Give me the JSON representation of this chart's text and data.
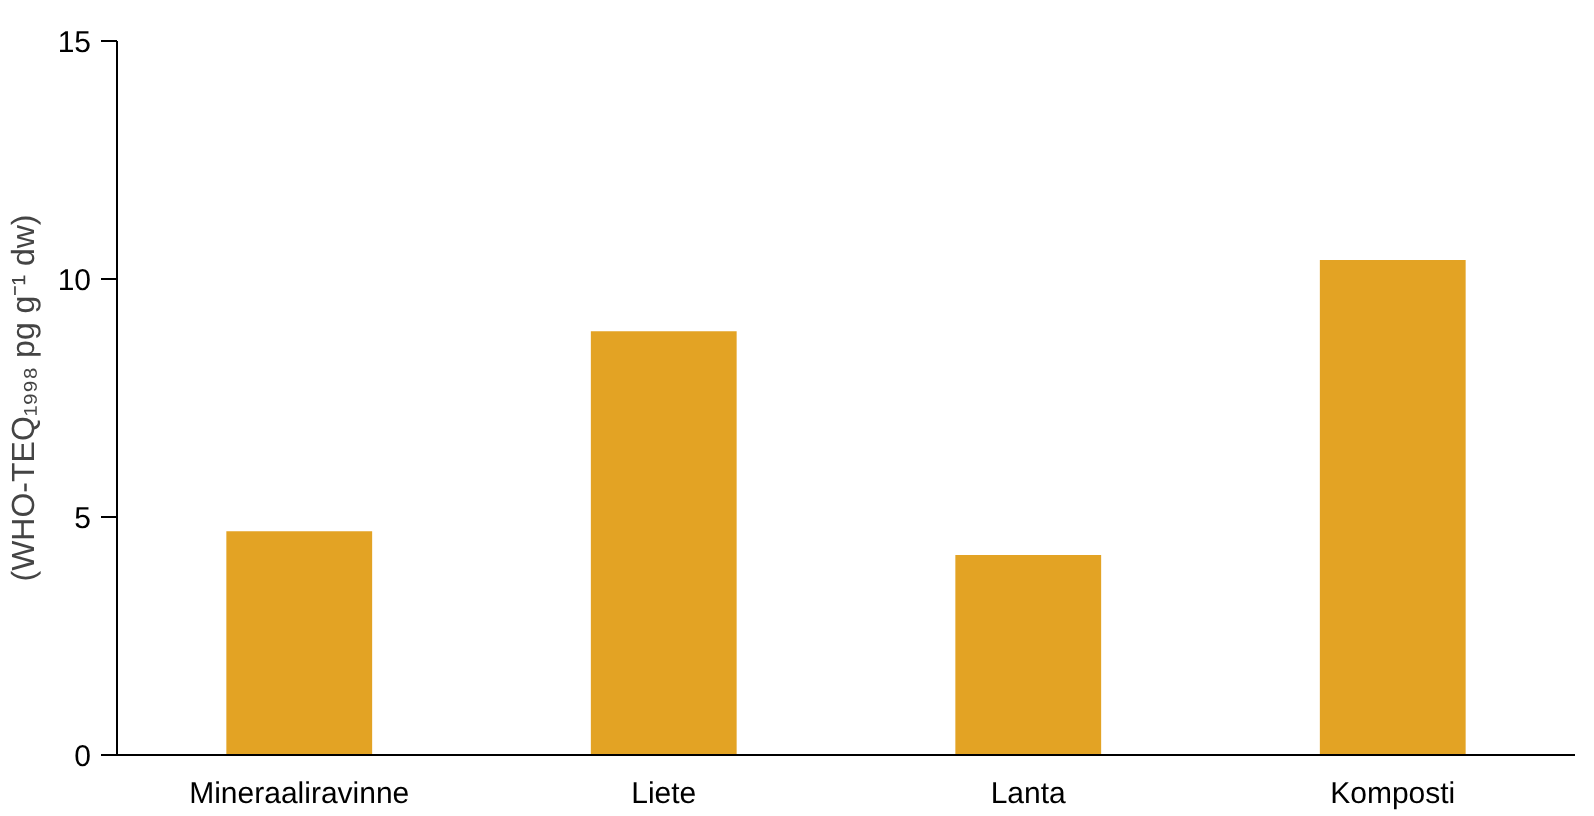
{
  "chart_data": {
    "type": "bar",
    "ylabel": "(WHO-TEQ₁₉₉₈ pg g⁻¹ dw)",
    "categories": [
      "Mineraaliravinne",
      "Liete",
      "Lanta",
      "Komposti"
    ],
    "values": [
      4.7,
      8.9,
      4.2,
      10.4
    ],
    "color": "#e3a324",
    "ylim": [
      0,
      15
    ],
    "yticks": [
      0,
      5,
      10,
      15
    ],
    "grid": false
  }
}
